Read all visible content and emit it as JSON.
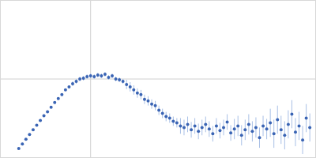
{
  "chart_data": {
    "type": "scatter",
    "color": "#3a64b4",
    "marker": "circle",
    "grid": true,
    "tick_labels": false,
    "xlim": [
      0,
      0.35
    ],
    "ylim": [
      0,
      2
    ],
    "xticks": [
      0.1
    ],
    "yticks": [
      1
    ],
    "x": [
      0.02,
      0.024,
      0.028,
      0.032,
      0.036,
      0.04,
      0.044,
      0.048,
      0.052,
      0.056,
      0.06,
      0.064,
      0.068,
      0.072,
      0.076,
      0.08,
      0.084,
      0.088,
      0.092,
      0.096,
      0.1,
      0.104,
      0.108,
      0.112,
      0.116,
      0.12,
      0.124,
      0.128,
      0.132,
      0.136,
      0.14,
      0.144,
      0.148,
      0.152,
      0.156,
      0.16,
      0.164,
      0.168,
      0.172,
      0.176,
      0.18,
      0.184,
      0.188,
      0.192,
      0.196,
      0.2,
      0.204,
      0.208,
      0.212,
      0.216,
      0.22,
      0.224,
      0.228,
      0.232,
      0.236,
      0.24,
      0.244,
      0.248,
      0.252,
      0.256,
      0.26,
      0.264,
      0.268,
      0.272,
      0.276,
      0.28,
      0.284,
      0.288,
      0.292,
      0.296,
      0.3,
      0.304,
      0.308,
      0.312,
      0.316,
      0.32,
      0.324,
      0.328,
      0.332,
      0.336,
      0.34,
      0.344
    ],
    "values": [
      0.11,
      0.17,
      0.23,
      0.29,
      0.35,
      0.41,
      0.47,
      0.53,
      0.58,
      0.64,
      0.7,
      0.75,
      0.8,
      0.86,
      0.9,
      0.94,
      0.97,
      1.0,
      1.01,
      1.03,
      1.04,
      1.03,
      1.05,
      1.04,
      1.06,
      1.02,
      1.04,
      1.0,
      0.99,
      0.97,
      0.93,
      0.9,
      0.86,
      0.82,
      0.8,
      0.74,
      0.72,
      0.68,
      0.66,
      0.6,
      0.56,
      0.52,
      0.5,
      0.46,
      0.44,
      0.4,
      0.38,
      0.42,
      0.35,
      0.4,
      0.33,
      0.38,
      0.42,
      0.36,
      0.3,
      0.4,
      0.34,
      0.38,
      0.45,
      0.31,
      0.36,
      0.4,
      0.28,
      0.35,
      0.42,
      0.33,
      0.38,
      0.25,
      0.4,
      0.36,
      0.44,
      0.3,
      0.48,
      0.35,
      0.28,
      0.42,
      0.55,
      0.32,
      0.4,
      0.22,
      0.5,
      0.38
    ],
    "errors": [
      0.01,
      0.01,
      0.01,
      0.01,
      0.01,
      0.01,
      0.01,
      0.01,
      0.01,
      0.01,
      0.01,
      0.01,
      0.01,
      0.01,
      0.01,
      0.03,
      0.03,
      0.03,
      0.03,
      0.03,
      0.03,
      0.03,
      0.03,
      0.03,
      0.03,
      0.03,
      0.03,
      0.03,
      0.03,
      0.03,
      0.06,
      0.06,
      0.06,
      0.06,
      0.06,
      0.06,
      0.06,
      0.06,
      0.06,
      0.06,
      0.06,
      0.06,
      0.06,
      0.06,
      0.06,
      0.1,
      0.1,
      0.1,
      0.1,
      0.1,
      0.1,
      0.1,
      0.1,
      0.1,
      0.1,
      0.1,
      0.1,
      0.1,
      0.1,
      0.1,
      0.13,
      0.13,
      0.13,
      0.13,
      0.13,
      0.13,
      0.13,
      0.13,
      0.13,
      0.13,
      0.18,
      0.18,
      0.18,
      0.18,
      0.18,
      0.18,
      0.18,
      0.18,
      0.18,
      0.18,
      0.18,
      0.18
    ]
  }
}
